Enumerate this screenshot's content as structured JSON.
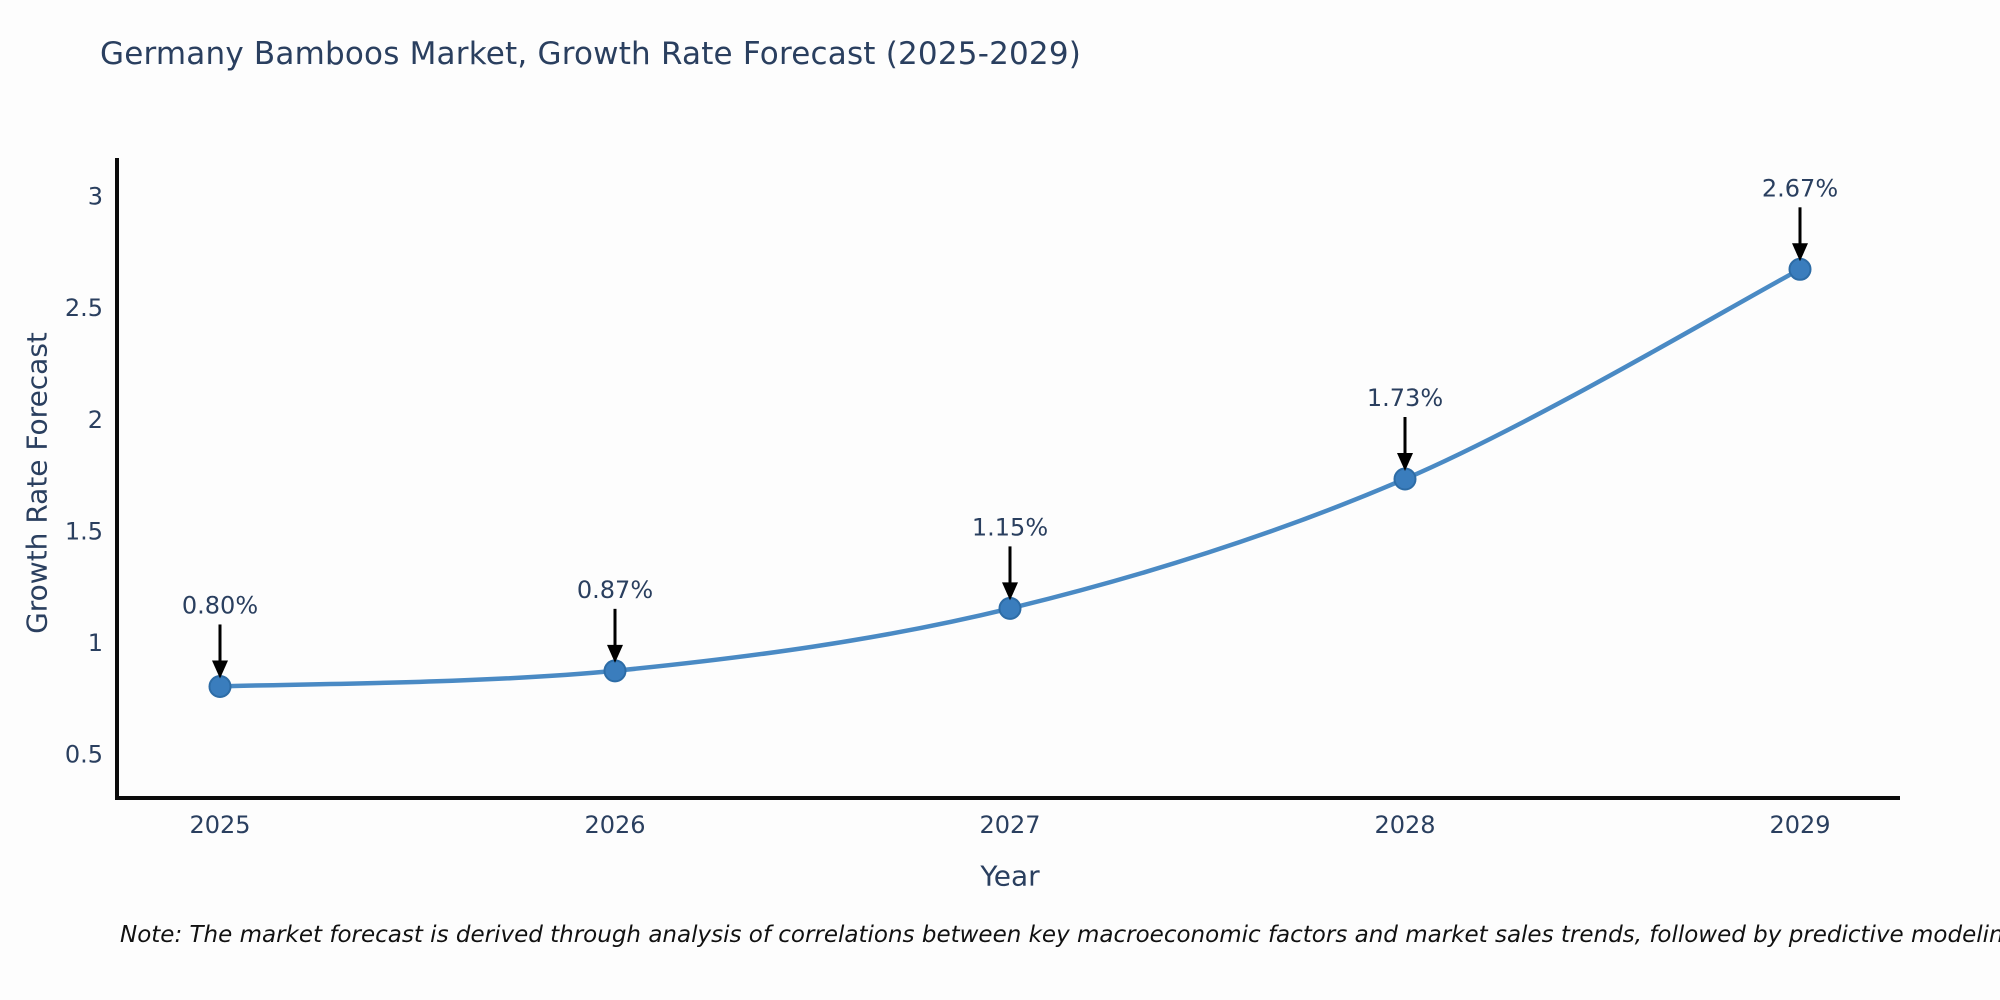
{
  "chart": {
    "title": "Germany Bamboos Market, Growth Rate Forecast (2025-2029)",
    "xlabel": "Year",
    "ylabel": "Growth Rate Forecast"
  },
  "chart_data": {
    "type": "line",
    "title": "Germany Bamboos Market, Growth Rate Forecast (2025-2029)",
    "xlabel": "Year",
    "ylabel": "Growth Rate Forecast",
    "x": [
      2025,
      2026,
      2027,
      2028,
      2029
    ],
    "series": [
      {
        "name": "Growth Rate Forecast",
        "values": [
          0.8,
          0.87,
          1.15,
          1.73,
          2.67
        ]
      }
    ],
    "point_labels": [
      "0.80%",
      "0.87%",
      "1.15%",
      "1.73%",
      "2.67%"
    ],
    "xtick_labels": [
      "2025",
      "2026",
      "2027",
      "2028",
      "2029"
    ],
    "ytick_values": [
      0.5,
      1,
      1.5,
      2,
      2.5,
      3
    ],
    "ytick_labels": [
      "0.5",
      "1",
      "1.5",
      "2",
      "2.5",
      "3"
    ],
    "ylim": [
      0.3,
      3.16
    ],
    "grid": false,
    "legend_position": "none",
    "line_shape": "spline",
    "marker_symbol": "circle",
    "annotations_have_arrows": true
  },
  "colors": {
    "line": "#4a8ac4",
    "marker_fill": "#3a7dbd",
    "marker_edge": "#2d6ca6",
    "axis_line": "#0b0b0b",
    "text": "#2a3f5f",
    "arrow": "#000000",
    "background": "#fdfdfd"
  },
  "note": {
    "text": "Note: The market forecast is derived through analysis of correlations between key macroeconomic factors and market sales trends, followed by predictive modeling to project future sales"
  }
}
